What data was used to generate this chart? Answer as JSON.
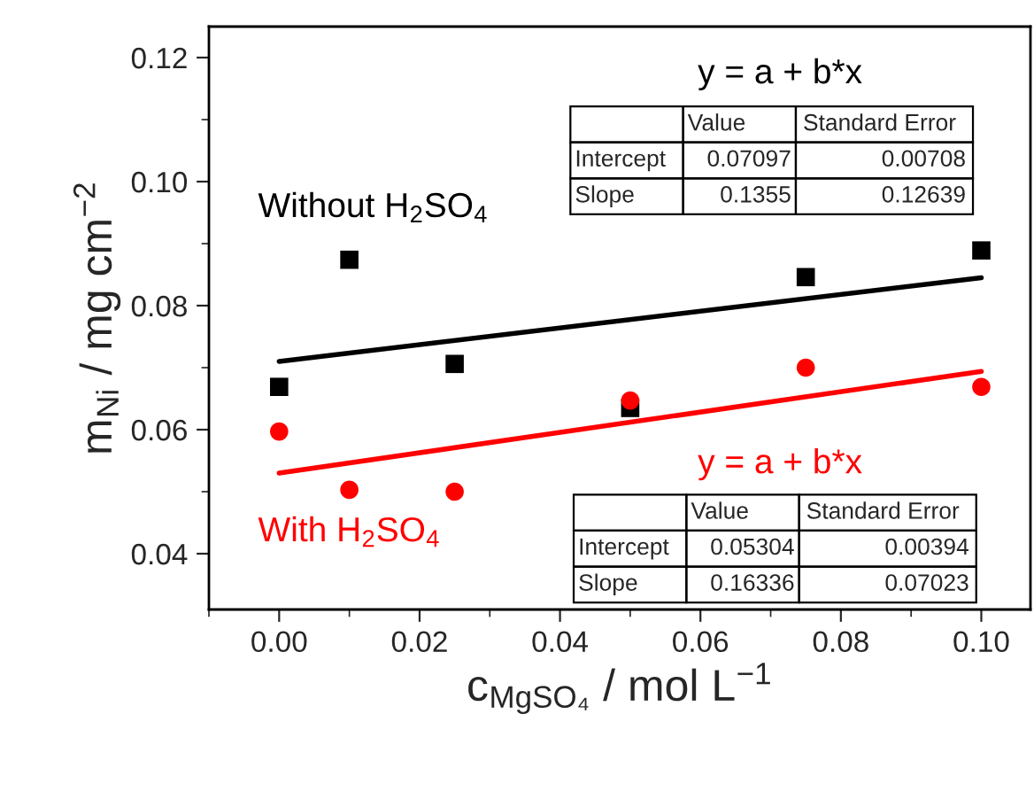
{
  "chart_data": {
    "type": "scatter",
    "xlabel": "c$_{MgSO₄}$ / mol L$^{−1}$",
    "ylabel": "m$_{Ni}$ / mg cm$^{−2}$",
    "xlim": [
      -0.01,
      0.107
    ],
    "ylim": [
      0.031,
      0.125
    ],
    "xticks": [
      {
        "value": 0,
        "label": "0.00"
      },
      0.02,
      0.04,
      0.06,
      0.08,
      {
        "value": 0.1,
        "label": "0.10"
      }
    ],
    "yticks": [
      0.04,
      0.06,
      0.08,
      {
        "value": 0.1,
        "label": "0.10"
      },
      0.12
    ],
    "grid": false,
    "series": [
      {
        "name": "Without H$_{2}$SO$_{4}$",
        "marker": "square",
        "color": "#000000",
        "x": [
          0,
          0.01,
          0.025,
          0.05,
          0.075,
          0.1
        ],
        "values": [
          0.0669,
          0.0874,
          0.0706,
          0.0635,
          0.0846,
          0.0889
        ]
      },
      {
        "name": "With H$_{2}$SO$_{4}$",
        "marker": "circle",
        "color": "#ff0000",
        "x": [
          0,
          0.01,
          0.025,
          0.05,
          0.075,
          0.1
        ],
        "values": [
          0.0597,
          0.0503,
          0.05,
          0.0647,
          0.07,
          0.0669
        ]
      },
      {
        "type": "line",
        "color": "#000000",
        "x": [
          0,
          0.1
        ],
        "values": [
          0.071,
          0.0845
        ]
      },
      {
        "type": "line",
        "color": "#ff0000",
        "x": [
          0,
          0.1
        ],
        "values": [
          0.053,
          0.0694
        ]
      }
    ],
    "annotations": [
      "y = a + b*x",
      "Value",
      "Standard Error",
      "Intercept",
      "0.07097",
      "0.00708",
      "Slope",
      "0.1355",
      "0.12639",
      "y = a + b*x",
      "Value",
      "Standard Error",
      "Intercept",
      "0.05304",
      "0.00394",
      "Slope",
      "0.16336",
      "0.07023"
    ]
  }
}
